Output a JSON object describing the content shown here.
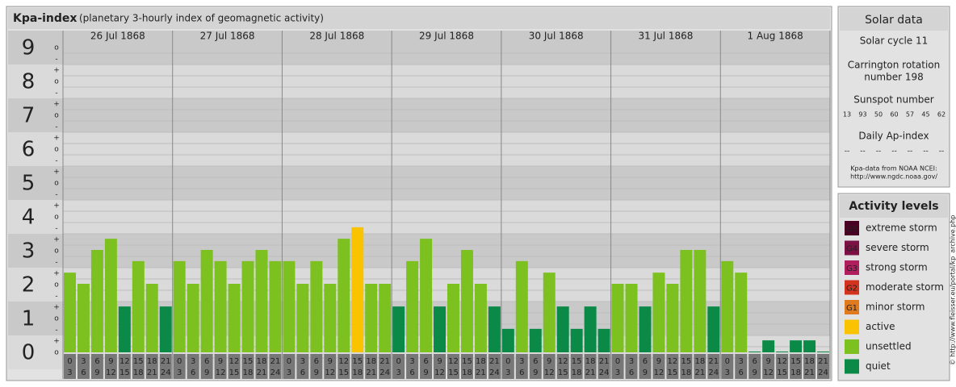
{
  "title": "Kpa-index",
  "subtitle": "(planetary 3-hourly index of geomagnetic activity)",
  "chart_data": {
    "type": "bar",
    "ylim": [
      -0.5,
      9.5
    ],
    "yticks": [
      0,
      1,
      2,
      3,
      4,
      5,
      6,
      7,
      8,
      9
    ],
    "sub_labels": {
      "minus": "-",
      "o": "o",
      "plus": "+"
    },
    "hours": [
      [
        0,
        3
      ],
      [
        3,
        6
      ],
      [
        6,
        9
      ],
      [
        9,
        12
      ],
      [
        12,
        15
      ],
      [
        15,
        18
      ],
      [
        18,
        21
      ],
      [
        21,
        24
      ]
    ],
    "days": [
      {
        "date": "26 Jul 1868",
        "values": [
          2.33,
          2,
          3,
          3.33,
          1.33,
          2.67,
          2,
          1.33
        ],
        "colors": [
          "#7cc11f",
          "#7cc11f",
          "#7cc11f",
          "#7cc11f",
          "#0a8a46",
          "#7cc11f",
          "#7cc11f",
          "#0a8a46"
        ]
      },
      {
        "date": "27 Jul 1868",
        "values": [
          2.67,
          2,
          3,
          2.67,
          2,
          2.67,
          3,
          2.67
        ],
        "colors": [
          "#7cc11f",
          "#7cc11f",
          "#7cc11f",
          "#7cc11f",
          "#7cc11f",
          "#7cc11f",
          "#7cc11f",
          "#7cc11f"
        ]
      },
      {
        "date": "28 Jul 1868",
        "values": [
          2.67,
          2,
          2.67,
          2,
          3.33,
          3.67,
          2,
          2
        ],
        "colors": [
          "#7cc11f",
          "#7cc11f",
          "#7cc11f",
          "#7cc11f",
          "#7cc11f",
          "#f9c300",
          "#7cc11f",
          "#7cc11f"
        ]
      },
      {
        "date": "29 Jul 1868",
        "values": [
          1.33,
          2.67,
          3.33,
          1.33,
          2,
          3,
          2,
          1.33
        ],
        "colors": [
          "#0a8a46",
          "#7cc11f",
          "#7cc11f",
          "#0a8a46",
          "#7cc11f",
          "#7cc11f",
          "#7cc11f",
          "#0a8a46"
        ]
      },
      {
        "date": "30 Jul 1868",
        "values": [
          0.67,
          2.67,
          0.67,
          2.33,
          1.33,
          0.67,
          1.33,
          0.67
        ],
        "colors": [
          "#0a8a46",
          "#7cc11f",
          "#0a8a46",
          "#7cc11f",
          "#0a8a46",
          "#0a8a46",
          "#0a8a46",
          "#0a8a46"
        ]
      },
      {
        "date": "31 Jul 1868",
        "values": [
          2,
          2,
          1.33,
          2.33,
          2,
          3,
          3,
          1.33
        ],
        "colors": [
          "#7cc11f",
          "#7cc11f",
          "#0a8a46",
          "#7cc11f",
          "#7cc11f",
          "#7cc11f",
          "#7cc11f",
          "#0a8a46"
        ]
      },
      {
        "date": "1 Aug 1868",
        "values": [
          2.67,
          2.33,
          0,
          0.33,
          0,
          0.33,
          0.33,
          0
        ],
        "colors": [
          "#7cc11f",
          "#7cc11f",
          "#0a8a46",
          "#0a8a46",
          "#0a8a46",
          "#0a8a46",
          "#0a8a46",
          "#0a8a46"
        ]
      }
    ]
  },
  "solar": {
    "title": "Solar data",
    "cycle": "Solar cycle 11",
    "carrington": [
      "Carrington rotation",
      "number 198"
    ],
    "sunspot_title": "Sunspot number",
    "sunspots": [
      13,
      93,
      50,
      60,
      57,
      45,
      62
    ],
    "ap_title": "Daily Ap-index",
    "ap": [
      "--",
      "--",
      "--",
      "--",
      "--",
      "--",
      "--"
    ],
    "source": [
      "Kpa-data from NOAA NCEI:",
      "http://www.ngdc.noaa.gov/"
    ]
  },
  "legend": {
    "title": "Activity levels",
    "items": [
      {
        "code": "G5",
        "label": "extreme storm",
        "color": "#4a0022"
      },
      {
        "code": "G4",
        "label": "severe storm",
        "color": "#7a1044"
      },
      {
        "code": "G3",
        "label": "strong storm",
        "color": "#b01e5e"
      },
      {
        "code": "G2",
        "label": "moderate storm",
        "color": "#d2321e"
      },
      {
        "code": "G1",
        "label": "minor storm",
        "color": "#e07a1e"
      },
      {
        "code": null,
        "label": "active",
        "color": "#f9c300"
      },
      {
        "code": null,
        "label": "unsettled",
        "color": "#7cc11f"
      },
      {
        "code": null,
        "label": "quiet",
        "color": "#0a8a46"
      }
    ]
  },
  "watermark": "© http://www.fleisser.eu/portal/kp_archive.php"
}
